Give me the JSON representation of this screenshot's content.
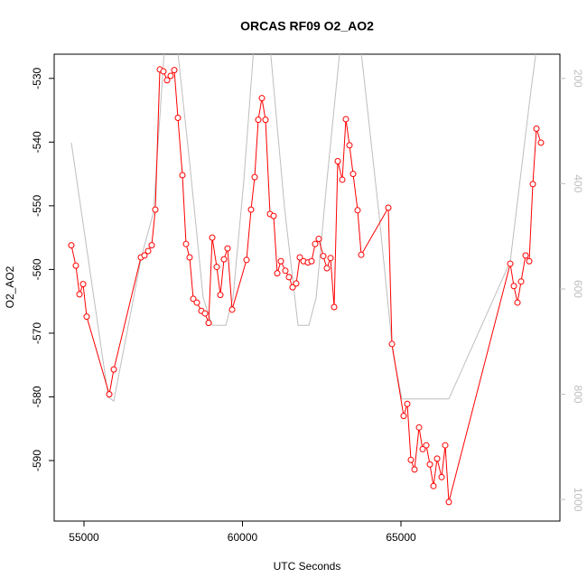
{
  "chart_data": {
    "type": "line",
    "title": "ORCAS RF09 O2_AO2",
    "x_label": "UTC Seconds",
    "y_label": "O2_AO2",
    "xlim": [
      54060,
      70014
    ],
    "ylim": [
      -599.5,
      -526.2
    ],
    "y2lim": [
      1041,
      154
    ],
    "xticks": [
      55000,
      60000,
      65000
    ],
    "yticks": [
      -590,
      -580,
      -570,
      -560,
      -550,
      -540,
      -530
    ],
    "y2ticks": [
      200,
      400,
      600,
      800,
      1000
    ],
    "series": [
      {
        "color": "#bebebe",
        "axis": "y2",
        "x": [
          54601,
          55769,
          55940,
          56823,
          57194,
          57564,
          57906,
          58333,
          58761,
          59046,
          59473,
          59701,
          60043,
          60385,
          60840,
          61325,
          61752,
          62094,
          62322,
          62664,
          63120,
          63689,
          64316,
          64744,
          65028,
          66510,
          68447,
          69103,
          69330
        ],
        "values": [
          322,
          806,
          813,
          536,
          454,
          119,
          119,
          360,
          617,
          669,
          669,
          617,
          394,
          119,
          119,
          445,
          669,
          669,
          617,
          394,
          119,
          119,
          463,
          720,
          809,
          809,
          548,
          222,
          119
        ]
      },
      {
        "color": "#ff0000",
        "x": [
          54601,
          54744,
          54858,
          54972,
          55085,
          55798,
          55940,
          56795,
          56909,
          57023,
          57137,
          57251,
          57393,
          57507,
          57621,
          57735,
          57849,
          57963,
          58105,
          58219,
          58333,
          58447,
          58561,
          58704,
          58818,
          58932,
          59046,
          59188,
          59302,
          59416,
          59530,
          59672,
          60128,
          60271,
          60385,
          60499,
          60613,
          60726,
          60869,
          60983,
          61097,
          61211,
          61353,
          61467,
          61581,
          61695,
          61809,
          61923,
          62066,
          62179,
          62293,
          62407,
          62550,
          62664,
          62778,
          62892,
          63006,
          63148,
          63262,
          63376,
          63490,
          63632,
          63746,
          64601,
          64715,
          65085,
          65199,
          65313,
          65427,
          65570,
          65684,
          65798,
          65912,
          66026,
          66140,
          66282,
          66396,
          66510,
          68447,
          68561,
          68675,
          68789,
          68932,
          69046,
          69160,
          69274,
          69416
        ],
        "values": [
          -556.2,
          -559.4,
          -563.9,
          -562.3,
          -567.4,
          -579.6,
          -575.7,
          -558.1,
          -557.8,
          -557.1,
          -556.2,
          -550.6,
          -528.6,
          -528.9,
          -530.3,
          -529.6,
          -528.7,
          -536.2,
          -545.2,
          -556.0,
          -558.1,
          -564.6,
          -565.2,
          -566.5,
          -566.9,
          -568.4,
          -555.0,
          -559.6,
          -564.0,
          -558.4,
          -556.7,
          -566.3,
          -558.5,
          -550.6,
          -545.5,
          -536.5,
          -533.1,
          -536.5,
          -551.3,
          -551.6,
          -560.6,
          -558.7,
          -560.2,
          -561.2,
          -562.8,
          -562.2,
          -558.1,
          -558.7,
          -558.9,
          -558.7,
          -556.0,
          -555.2,
          -557.9,
          -559.8,
          -558.2,
          -565.9,
          -543.0,
          -545.9,
          -536.4,
          -540.5,
          -545.0,
          -550.7,
          -557.7,
          -550.3,
          -571.7,
          -583.0,
          -581.1,
          -589.9,
          -591.4,
          -584.8,
          -588.2,
          -587.6,
          -590.6,
          -594.0,
          -589.7,
          -592.6,
          -587.6,
          -596.5,
          -559.1,
          -562.6,
          -565.2,
          -561.9,
          -557.8,
          -558.7,
          -546.6,
          -537.9,
          -540.1
        ]
      }
    ]
  }
}
